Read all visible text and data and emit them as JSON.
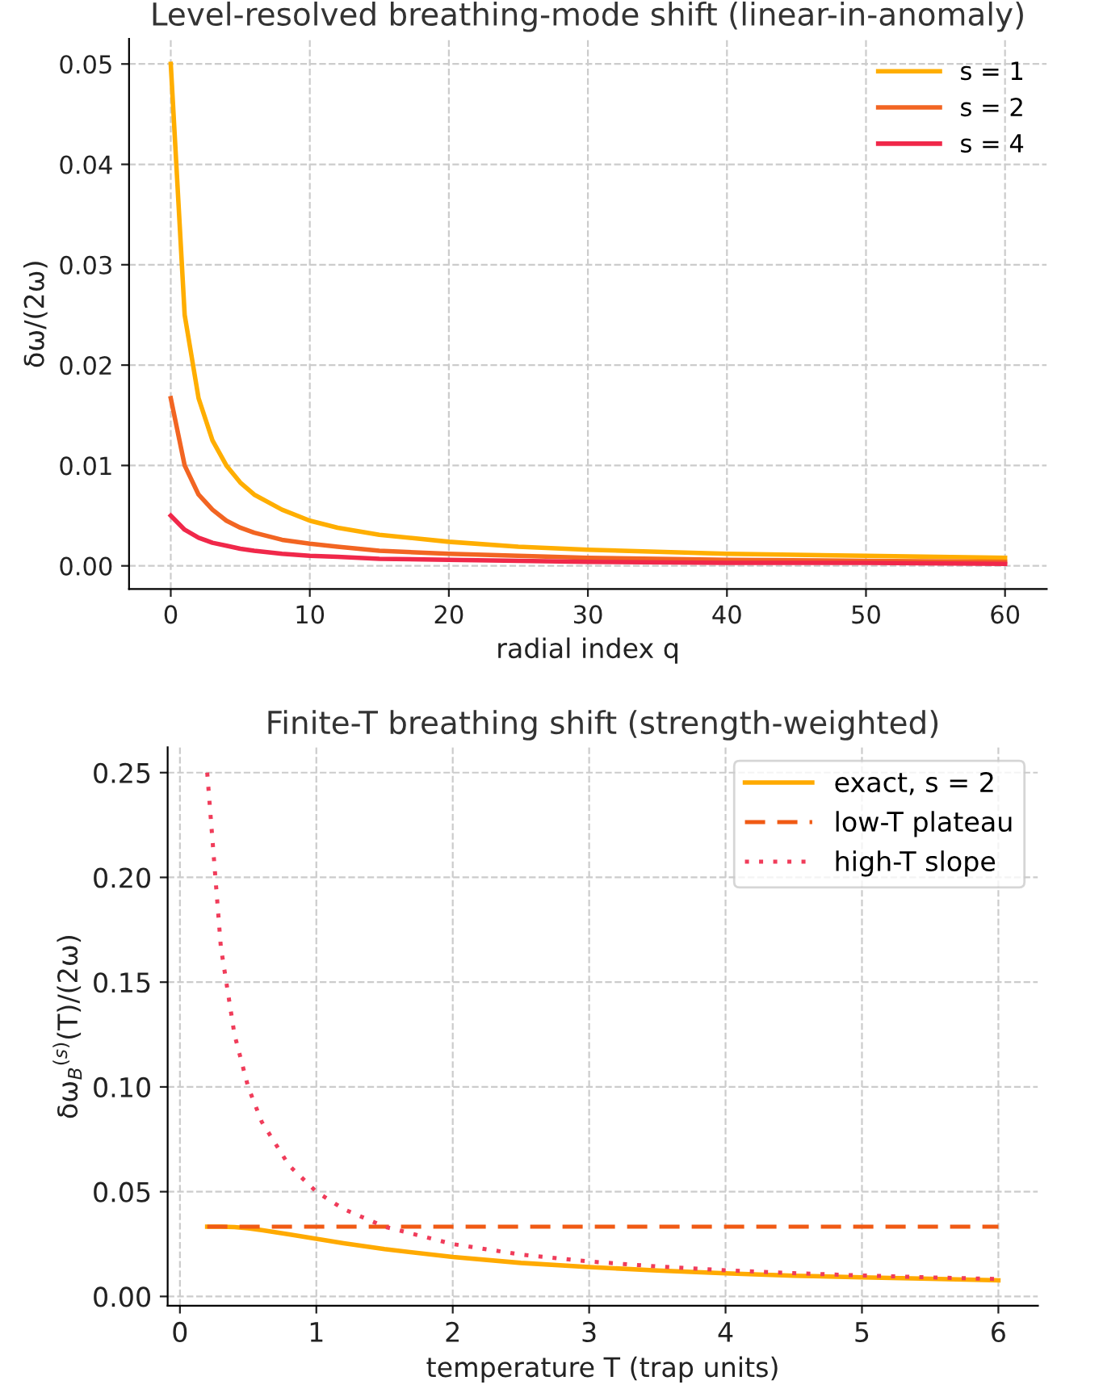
{
  "chart_data": [
    {
      "type": "line",
      "title": "Level-resolved breathing-mode shift (linear-in-anomaly)",
      "xlabel": "radial index q",
      "ylabel": "δω/(2ω)",
      "x": [
        0,
        1,
        2,
        3,
        4,
        5,
        6,
        8,
        10,
        12,
        15,
        20,
        25,
        30,
        40,
        50,
        60
      ],
      "series": [
        {
          "name": "s = 1",
          "color": "#ffae00",
          "values": [
            0.05,
            0.025,
            0.0167,
            0.0125,
            0.01,
            0.0083,
            0.0071,
            0.0056,
            0.0045,
            0.0038,
            0.0031,
            0.0024,
            0.0019,
            0.0016,
            0.0012,
            0.001,
            0.0008
          ]
        },
        {
          "name": "s = 2",
          "color": "#f26522",
          "values": [
            0.0167,
            0.01,
            0.0071,
            0.0056,
            0.0045,
            0.0038,
            0.0033,
            0.0026,
            0.0022,
            0.0019,
            0.0015,
            0.0012,
            0.001,
            0.0008,
            0.0006,
            0.0005,
            0.0004
          ]
        },
        {
          "name": "s = 4",
          "color": "#f0284a",
          "values": [
            0.005,
            0.0036,
            0.0028,
            0.0023,
            0.002,
            0.0017,
            0.0015,
            0.0012,
            0.001,
            0.0009,
            0.0007,
            0.0006,
            0.0005,
            0.0004,
            0.0003,
            0.0003,
            0.0002
          ]
        }
      ],
      "xlim": [
        -3,
        63
      ],
      "xticks": [
        0,
        10,
        20,
        30,
        40,
        50,
        60
      ],
      "ylim": [
        -0.0023,
        0.0525
      ],
      "yticks": [
        {
          "value": 0,
          "label": "0.00"
        },
        {
          "value": 0.01,
          "label": "0.01"
        },
        {
          "value": 0.02,
          "label": "0.02"
        },
        {
          "value": 0.03,
          "label": "0.03"
        },
        {
          "value": 0.04,
          "label": "0.04"
        },
        {
          "value": 0.05,
          "label": "0.05"
        }
      ],
      "grid": true,
      "legend": "top right",
      "marker": "none",
      "line_style": "solid"
    },
    {
      "type": "line",
      "title": "Finite-T breathing shift (strength-weighted)",
      "xlabel": "temperature T (trap units)",
      "ylabel": "δω$_{B}$$^{(s)}$(T)/(2ω)",
      "series": [
        {
          "name": "exact, s = 2",
          "color": "#ffaa00",
          "line_style": "solid",
          "x": [
            0.2,
            0.3,
            0.4,
            0.5,
            0.6,
            0.8,
            1,
            1.2,
            1.5,
            2,
            2.5,
            3,
            3.5,
            4,
            4.5,
            5,
            5.5,
            6
          ],
          "values": [
            0.0333,
            0.0333,
            0.0331,
            0.0325,
            0.0317,
            0.0296,
            0.0275,
            0.0254,
            0.0226,
            0.0188,
            0.016,
            0.014,
            0.0124,
            0.011,
            0.0099,
            0.0091,
            0.0084,
            0.0077
          ]
        },
        {
          "name": "low-T plateau",
          "color": "#f05a14",
          "line_style": "dashed",
          "x": [
            0.2,
            6
          ],
          "values": [
            0.0333,
            0.0333
          ]
        },
        {
          "name": "high-T slope",
          "color": "#f03c5a",
          "line_style": "dotted",
          "x": [
            0.2,
            0.3,
            0.4,
            0.5,
            0.6,
            0.8,
            1,
            1.2,
            1.5,
            2,
            2.5,
            3,
            3.5,
            4,
            4.5,
            5,
            5.5,
            6
          ],
          "values": [
            0.25,
            0.1667,
            0.125,
            0.1,
            0.0833,
            0.0625,
            0.05,
            0.0417,
            0.0333,
            0.025,
            0.02,
            0.0167,
            0.0143,
            0.0125,
            0.0111,
            0.01,
            0.0091,
            0.0083
          ]
        }
      ],
      "xlim": [
        -0.09,
        6.29
      ],
      "xticks": [
        0,
        1,
        2,
        3,
        4,
        5,
        6
      ],
      "ylim": [
        -0.0044,
        0.2621
      ],
      "yticks": [
        {
          "value": 0,
          "label": "0.00"
        },
        {
          "value": 0.05,
          "label": "0.05"
        },
        {
          "value": 0.1,
          "label": "0.10"
        },
        {
          "value": 0.15,
          "label": "0.15"
        },
        {
          "value": 0.2,
          "label": "0.20"
        },
        {
          "value": 0.25,
          "label": "0.25"
        }
      ],
      "grid": true,
      "legend": "top right",
      "marker": "none"
    }
  ]
}
